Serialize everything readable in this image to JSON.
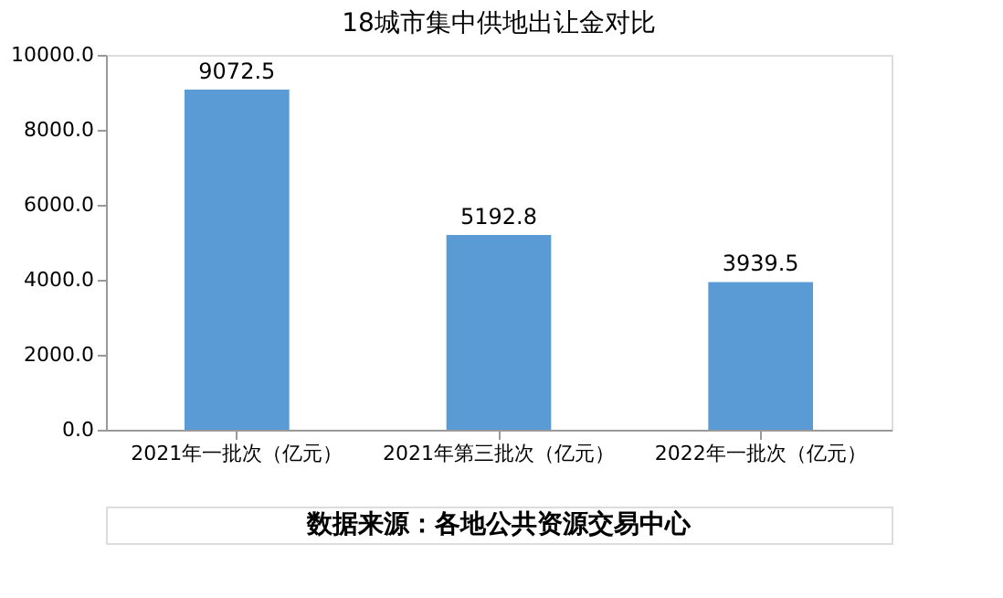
{
  "chart_data": {
    "type": "bar",
    "title": "18城市集中供地出让金对比",
    "categories": [
      "2021年一批次（亿元）",
      "2021年第三批次（亿元）",
      "2022年一批次（亿元）"
    ],
    "values": [
      9072.5,
      5192.8,
      3939.5
    ],
    "color": "#5b9bd5",
    "ylim": [
      0,
      10000
    ],
    "yticks": [
      {
        "value": 0,
        "label": "0.0"
      },
      {
        "value": 2000,
        "label": "2000.0"
      },
      {
        "value": 4000,
        "label": "4000.0"
      },
      {
        "value": 6000,
        "label": "6000.0"
      },
      {
        "value": 8000,
        "label": "8000.0"
      },
      {
        "value": 10000,
        "label": "10000.0"
      }
    ],
    "data_labels": true,
    "grid": false,
    "annotations": [
      "数据来源：各地公共资源交易中心"
    ]
  }
}
